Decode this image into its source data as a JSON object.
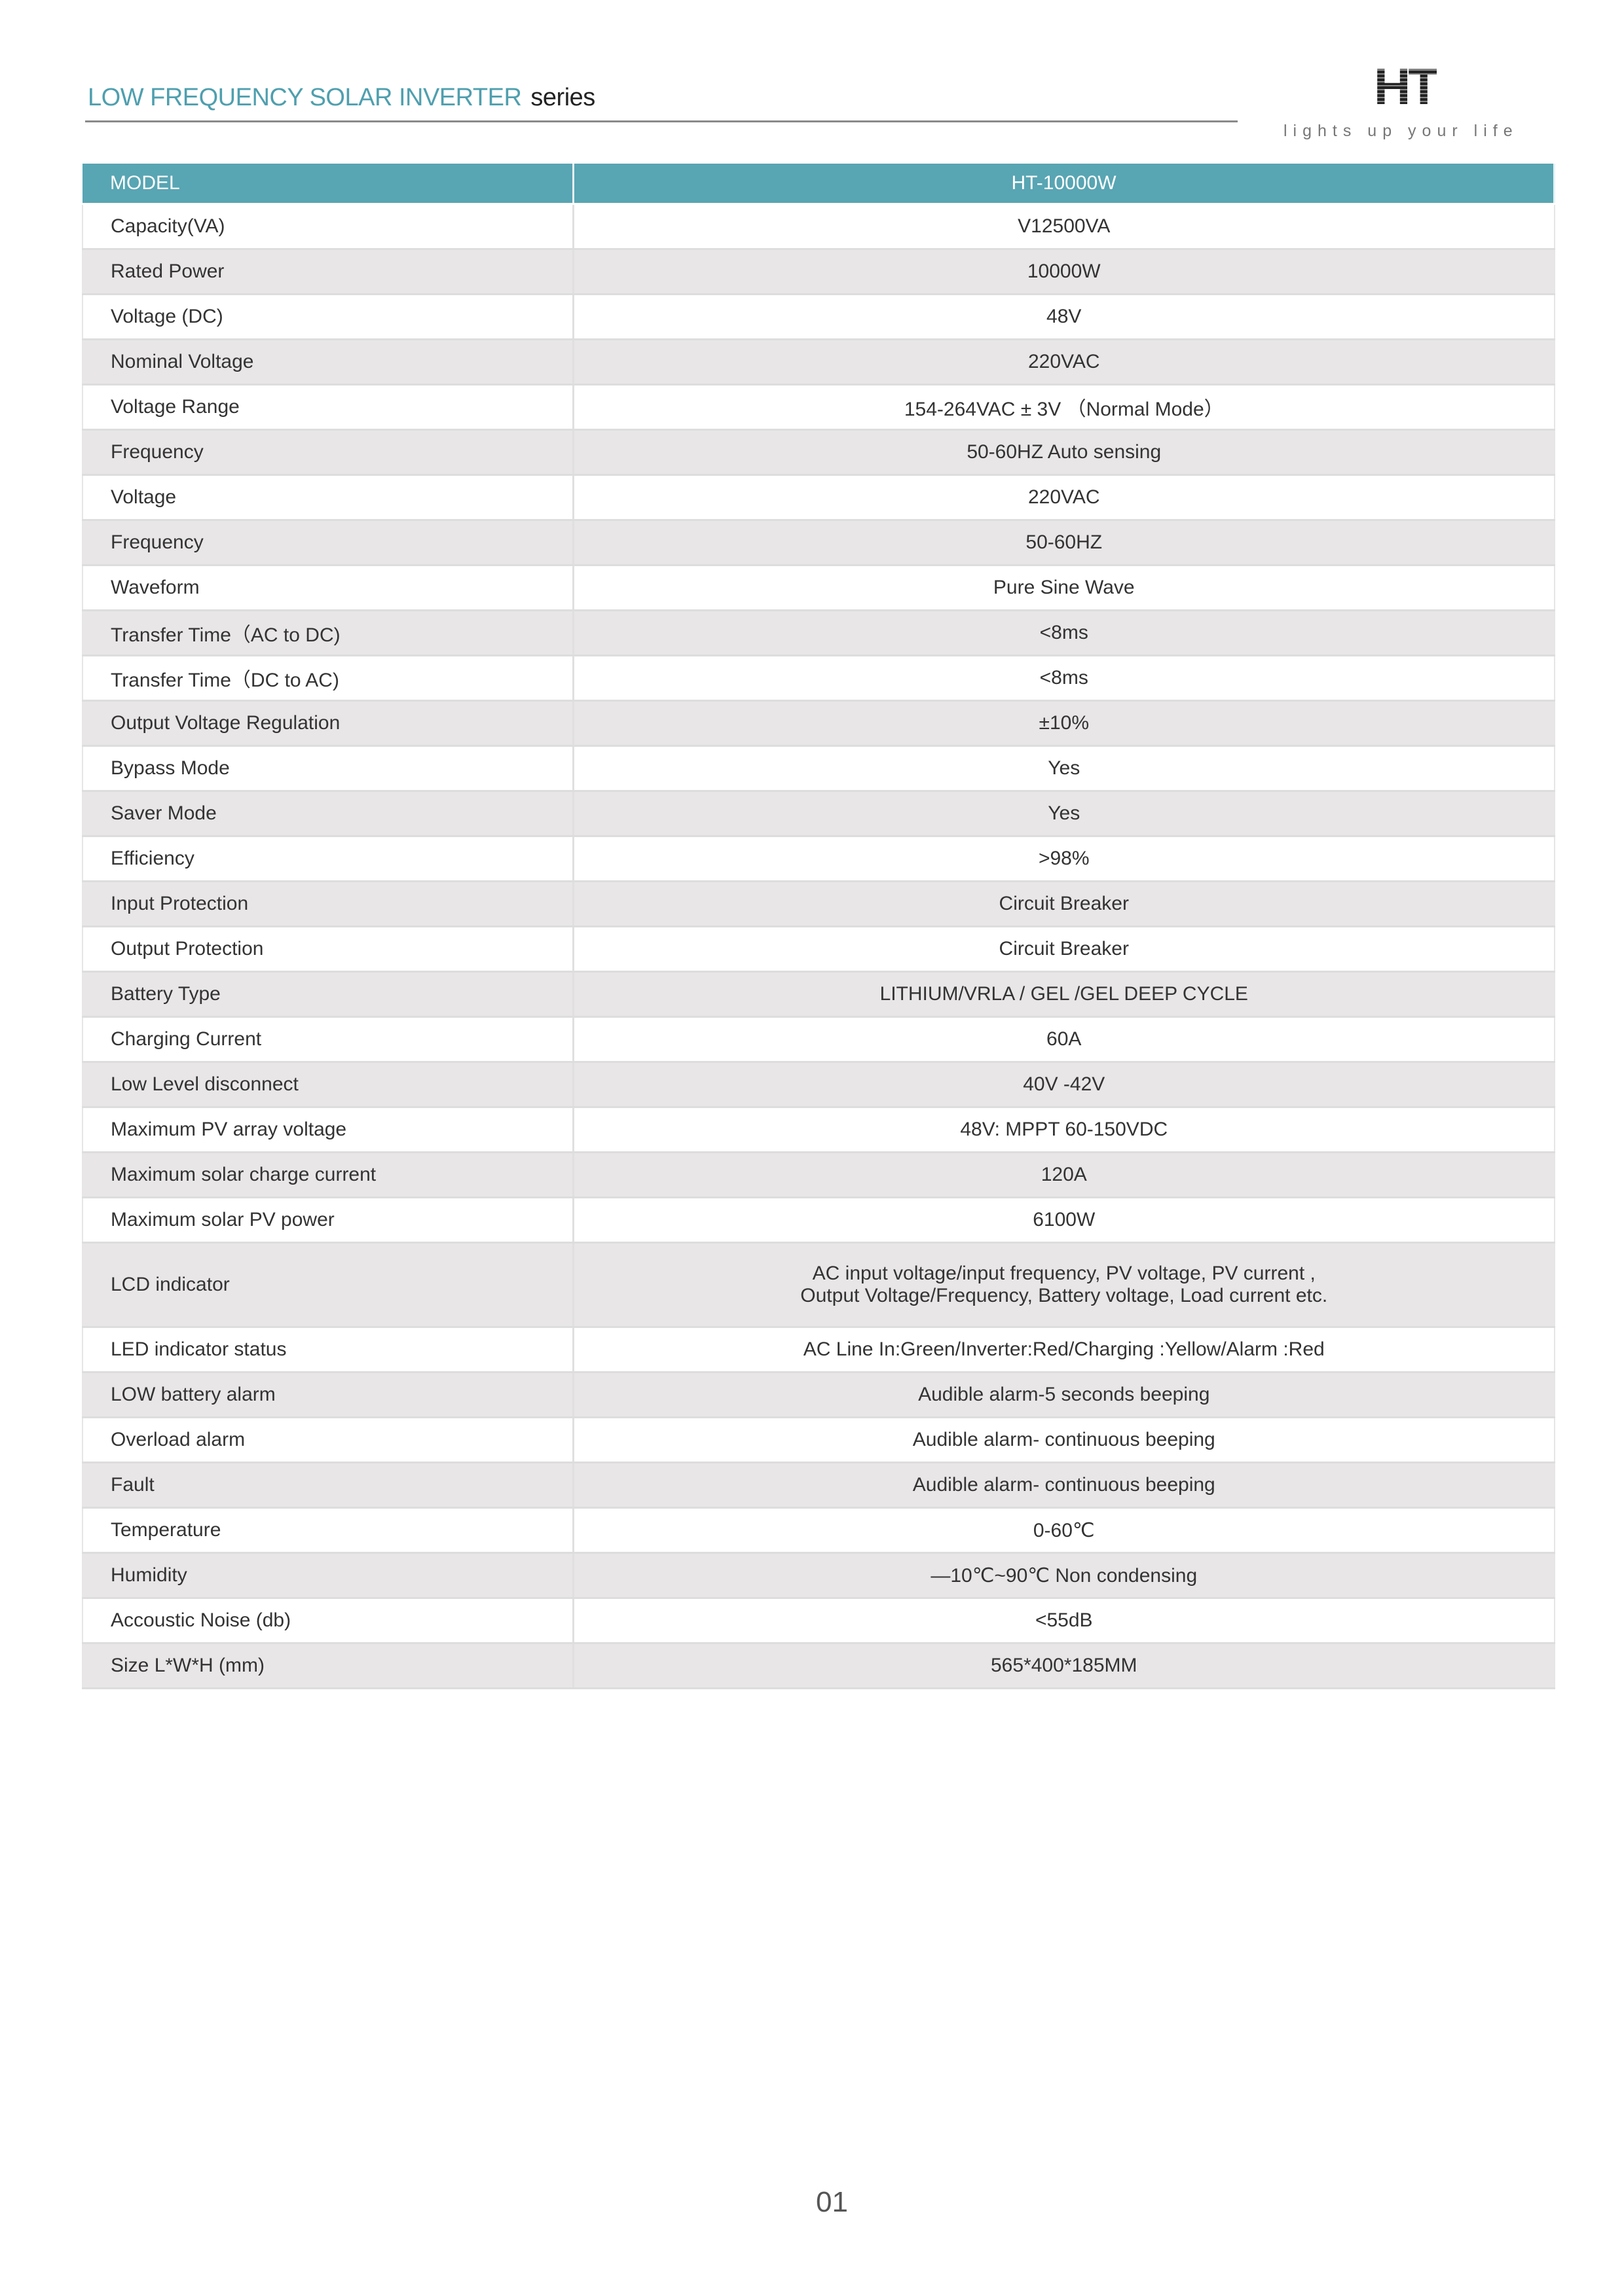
{
  "header": {
    "title_main": "LOW FREQUENCY SOLAR INVERTER",
    "title_suffix": "series",
    "logo_text": "HT",
    "tagline": "lights up your life"
  },
  "table": {
    "header": {
      "label": "MODEL",
      "value": "HT-10000W"
    },
    "rows": [
      {
        "label": "Capacity(VA)",
        "value": "V12500VA"
      },
      {
        "label": "Rated Power",
        "value": "10000W"
      },
      {
        "label": "Voltage (DC)",
        "value": "48V"
      },
      {
        "label": "Nominal Voltage",
        "value": "220VAC"
      },
      {
        "label": "Voltage Range",
        "value": "154-264VAC ± 3V （Normal Mode）"
      },
      {
        "label": "Frequency",
        "value": "50-60HZ Auto sensing"
      },
      {
        "label": "Voltage",
        "value": "220VAC"
      },
      {
        "label": "Frequency",
        "value": "50-60HZ"
      },
      {
        "label": "Waveform",
        "value": "Pure Sine Wave"
      },
      {
        "label": "Transfer Time（AC to DC)",
        "value": "<8ms"
      },
      {
        "label": "Transfer Time（DC to AC)",
        "value": "<8ms"
      },
      {
        "label": "Output Voltage Regulation",
        "value": "±10%"
      },
      {
        "label": "Bypass Mode",
        "value": "Yes"
      },
      {
        "label": "Saver Mode",
        "value": "Yes"
      },
      {
        "label": "Efficiency",
        "value": ">98%"
      },
      {
        "label": "Input Protection",
        "value": "Circuit Breaker"
      },
      {
        "label": "Output Protection",
        "value": "Circuit Breaker"
      },
      {
        "label": "Battery Type",
        "value": "LITHIUM/VRLA / GEL /GEL DEEP CYCLE"
      },
      {
        "label": "Charging Current",
        "value": "60A"
      },
      {
        "label": "Low Level disconnect",
        "value": "40V -42V"
      },
      {
        "label": "Maximum PV array voltage",
        "value": "48V: MPPT 60-150VDC"
      },
      {
        "label": "Maximum solar charge current",
        "value": "120A"
      },
      {
        "label": "Maximum solar PV power",
        "value": "6100W"
      },
      {
        "label": "LCD indicator",
        "value": "AC input voltage/input frequency, PV voltage, PV current ,",
        "value2": "Output Voltage/Frequency, Battery voltage, Load current etc."
      },
      {
        "label": "LED indicator status",
        "value": "AC Line In:Green/Inverter:Red/Charging  :Yellow/Alarm :Red"
      },
      {
        "label": "LOW battery alarm",
        "value": "Audible alarm-5 seconds beeping"
      },
      {
        "label": "Overload alarm",
        "value": "Audible alarm- continuous beeping"
      },
      {
        "label": "Fault",
        "value": "Audible alarm- continuous beeping"
      },
      {
        "label": "Temperature",
        "value": "0-60℃"
      },
      {
        "label": "Humidity",
        "value": "—10℃~90℃ Non condensing"
      },
      {
        "label": "Accoustic Noise (db)",
        "value": "<55dB"
      },
      {
        "label": "Size L*W*H (mm)",
        "value": "565*400*185MM"
      }
    ]
  },
  "footer": {
    "page_number": "01"
  },
  "colors": {
    "accent": "#58a5b3",
    "row_alt": "#e8e6e7",
    "title": "#4f9fae"
  }
}
